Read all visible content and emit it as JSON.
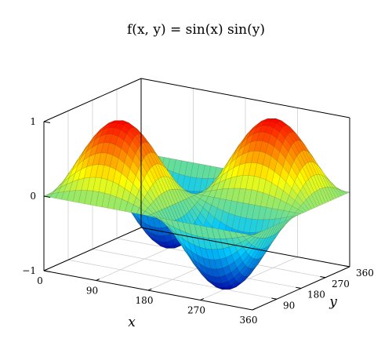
{
  "chart_data": {
    "type": "surface",
    "title": "f(x, y) = sin(x) sin(y)",
    "function": "sin(x)*sin(y)",
    "xlabel": "x",
    "ylabel": "y",
    "zlabel": "",
    "xlim": [
      0,
      360
    ],
    "ylim": [
      0,
      360
    ],
    "zlim": [
      -1,
      1
    ],
    "x_ticks": [
      0,
      90,
      180,
      270,
      360
    ],
    "y_ticks": [
      90,
      180,
      270,
      360
    ],
    "z_ticks": [
      -1,
      0,
      1
    ],
    "x_tick_labels": [
      "0",
      "90",
      "180",
      "270",
      "360"
    ],
    "y_tick_labels": [
      "90",
      "180",
      "270",
      "360"
    ],
    "z_tick_labels": [
      "−1",
      "0",
      "1"
    ],
    "grid": true,
    "colormap": [
      "#0000aa",
      "#00c8ff",
      "#ffff00",
      "#ff0000"
    ],
    "peaks": [
      {
        "x": 90,
        "y": 90,
        "z": 1
      },
      {
        "x": 270,
        "y": 270,
        "z": 1
      }
    ],
    "troughs": [
      {
        "x": 90,
        "y": 270,
        "z": -1
      },
      {
        "x": 270,
        "y": 90,
        "z": -1
      }
    ]
  }
}
